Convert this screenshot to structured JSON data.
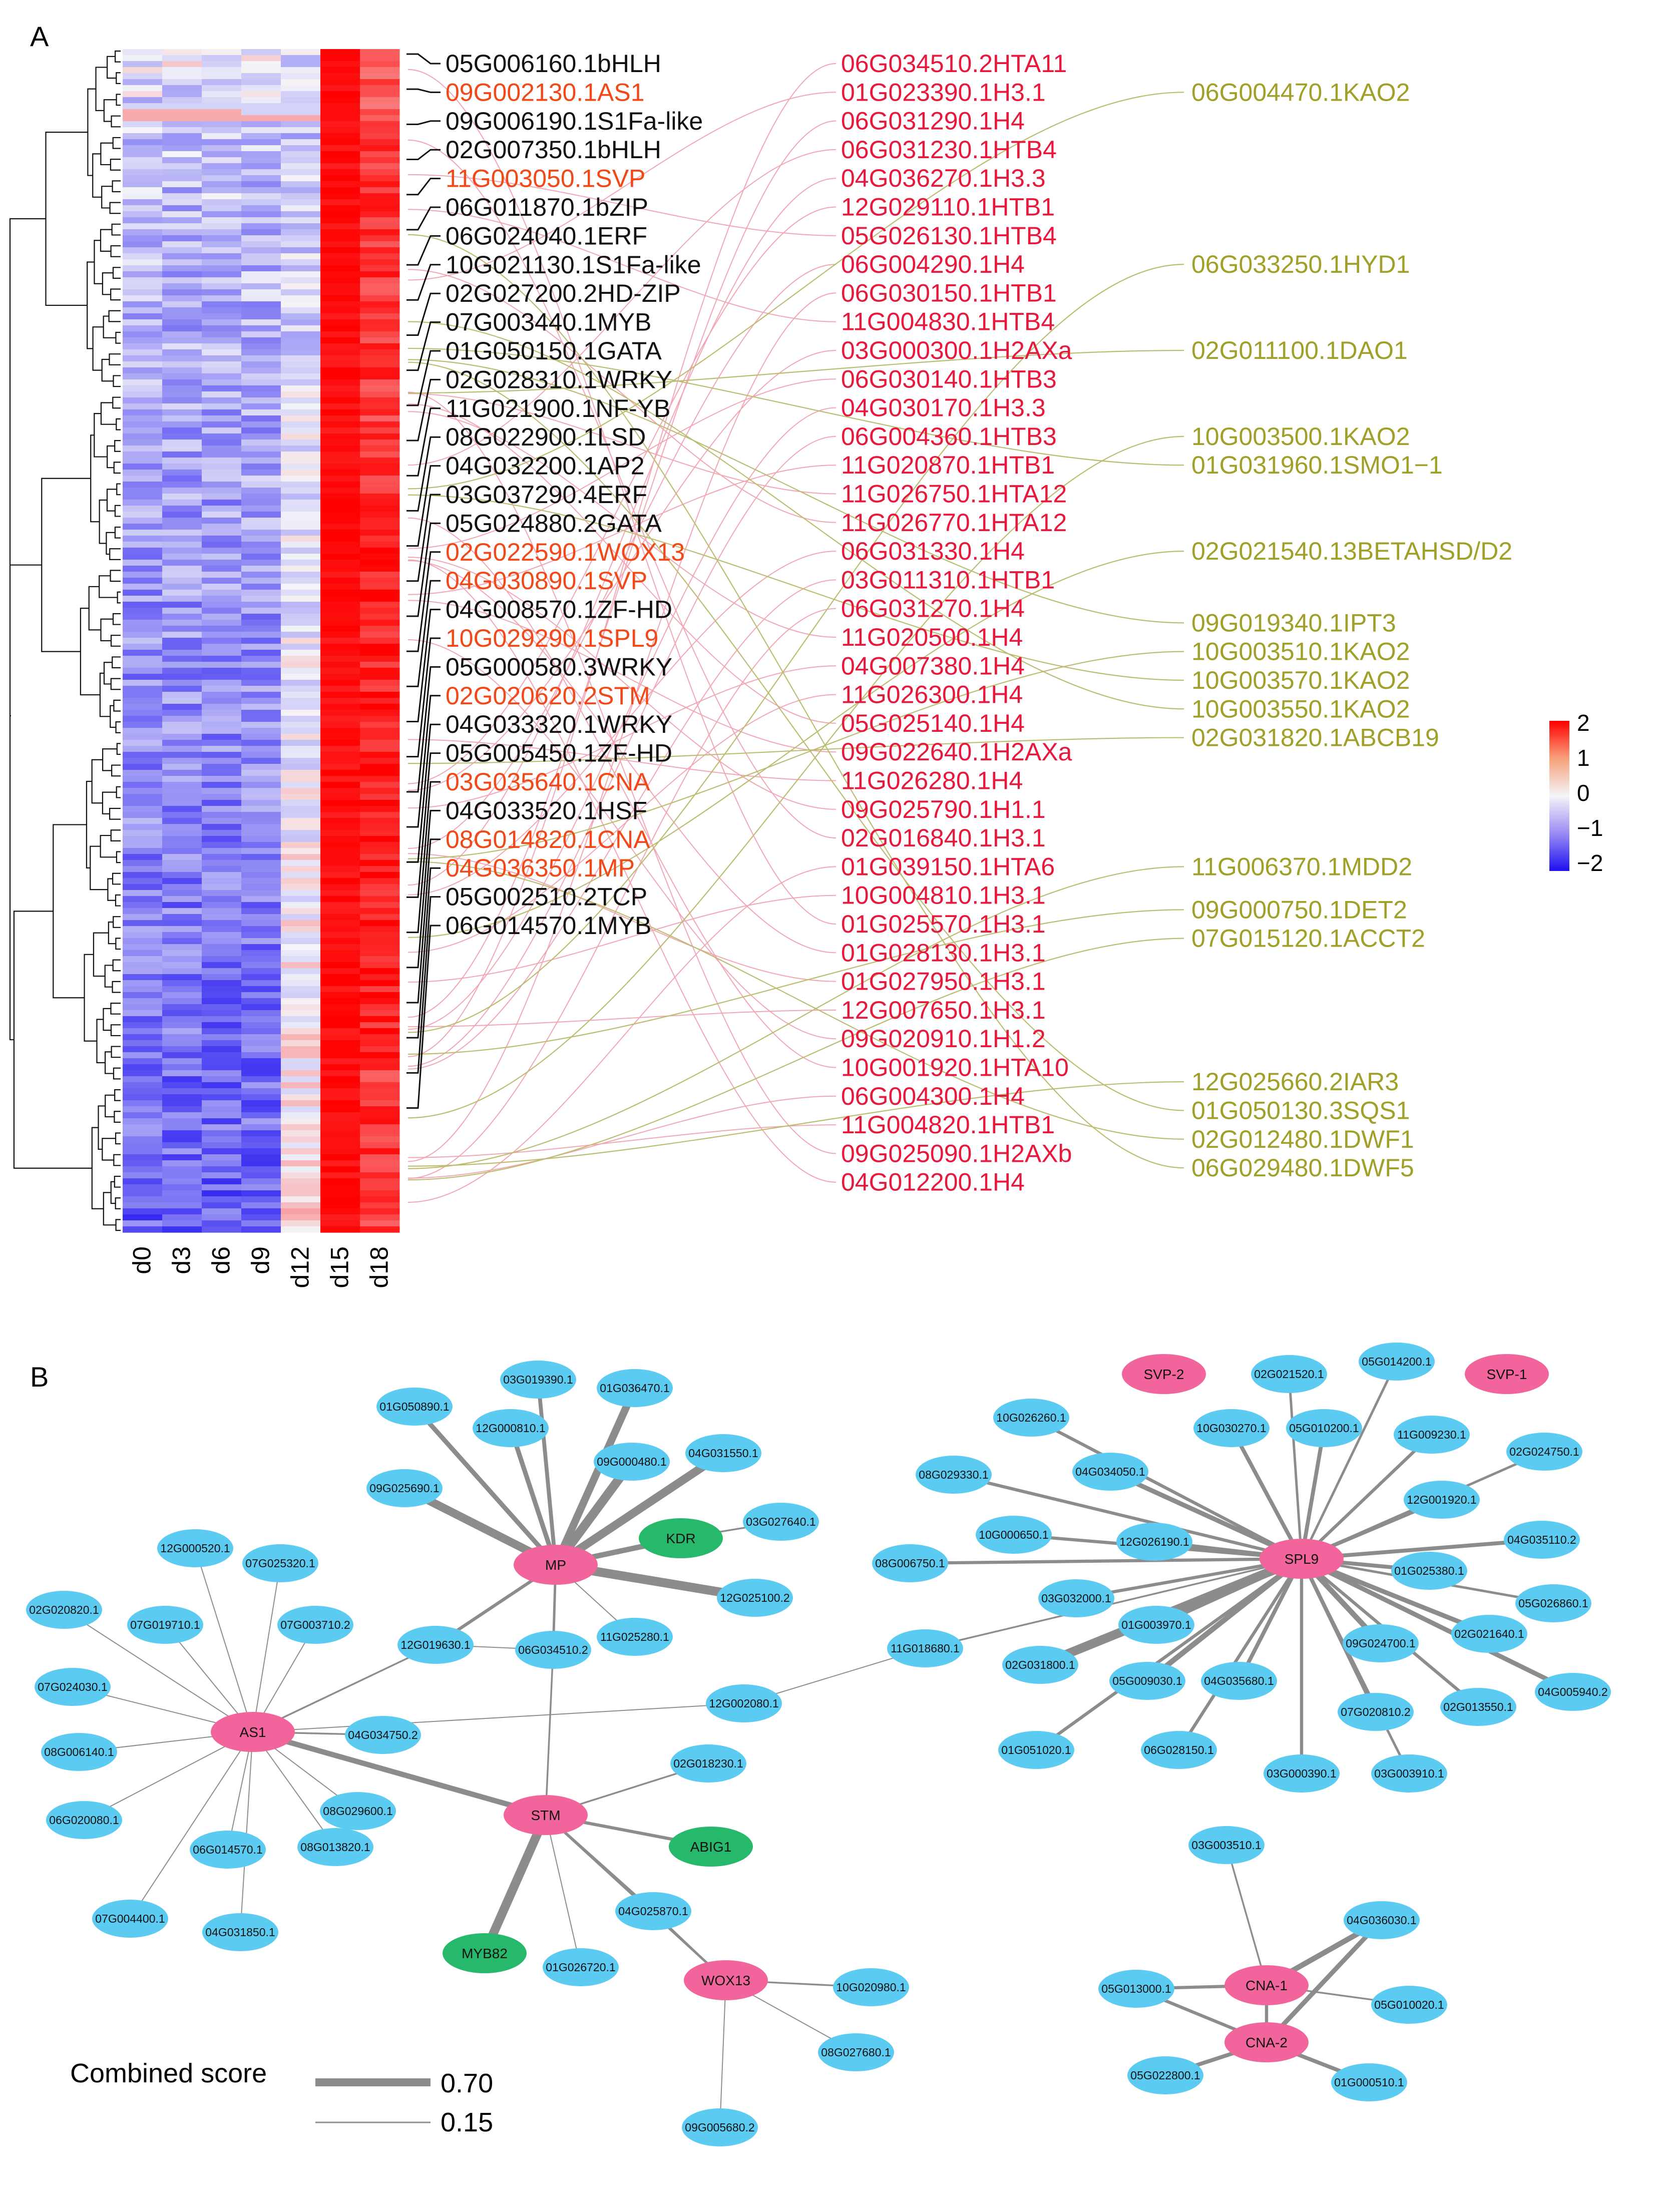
{
  "panelA": {
    "label": "A",
    "samples": [
      "d0",
      "d3",
      "d6",
      "d9",
      "d12",
      "d15",
      "d18"
    ],
    "legend": {
      "ticks": [
        "2",
        "1",
        "0",
        "−1",
        "−2"
      ],
      "colors": {
        "high": "#ff0000",
        "mid": "#f4f4f8",
        "low": "#1d10f0"
      }
    },
    "tf": [
      {
        "t": "05G006160.1bHLH",
        "c": "black"
      },
      {
        "t": "09G002130.1AS1",
        "c": "orange"
      },
      {
        "t": "09G006190.1S1Fa-like",
        "c": "black"
      },
      {
        "t": "02G007350.1bHLH",
        "c": "black"
      },
      {
        "t": "11G003050.1SVP",
        "c": "orange"
      },
      {
        "t": "06G011870.1bZIP",
        "c": "black"
      },
      {
        "t": "06G024040.1ERF",
        "c": "black"
      },
      {
        "t": "10G021130.1S1Fa-like",
        "c": "black"
      },
      {
        "t": "02G027200.2HD-ZIP",
        "c": "black"
      },
      {
        "t": "07G003440.1MYB",
        "c": "black"
      },
      {
        "t": "01G050150.1GATA",
        "c": "black"
      },
      {
        "t": "02G028310.1WRKY",
        "c": "black"
      },
      {
        "t": "11G021900.1NF-YB",
        "c": "black"
      },
      {
        "t": "08G022900.1LSD",
        "c": "black"
      },
      {
        "t": "04G032200.1AP2",
        "c": "black"
      },
      {
        "t": "03G037290.4ERF",
        "c": "black"
      },
      {
        "t": "05G024880.2GATA",
        "c": "black"
      },
      {
        "t": "02G022590.1WOX13",
        "c": "orange"
      },
      {
        "t": "04G030890.1SVP",
        "c": "orange"
      },
      {
        "t": "04G008570.1ZF-HD",
        "c": "black"
      },
      {
        "t": "10G029290.1SPL9",
        "c": "orange"
      },
      {
        "t": "05G000580.3WRKY",
        "c": "black"
      },
      {
        "t": "02G020620.2STM",
        "c": "orange"
      },
      {
        "t": "04G033320.1WRKY",
        "c": "black"
      },
      {
        "t": "05G005450.1ZF-HD",
        "c": "black"
      },
      {
        "t": "03G035640.1CNA",
        "c": "orange"
      },
      {
        "t": "04G033520.1HSF",
        "c": "black"
      },
      {
        "t": "08G014820.1CNA",
        "c": "orange"
      },
      {
        "t": "04G036350.1MP",
        "c": "orange"
      },
      {
        "t": "05G002510.2TCP",
        "c": "black"
      },
      {
        "t": "06G014570.1MYB",
        "c": "black"
      }
    ],
    "histones": [
      "06G034510.2HTA11",
      "01G023390.1H3.1",
      "06G031290.1H4",
      "06G031230.1HTB4",
      "04G036270.1H3.3",
      "12G029110.1HTB1",
      "05G026130.1HTB4",
      "06G004290.1H4",
      "06G030150.1HTB1",
      "11G004830.1HTB4",
      "03G000300.1H2AXa",
      "06G030140.1HTB3",
      "04G030170.1H3.3",
      "06G004360.1HTB3",
      "11G020870.1HTB1",
      "11G026750.1HTA12",
      "11G026770.1HTA12",
      "06G031330.1H4",
      "03G011310.1HTB1",
      "06G031270.1H4",
      "11G020500.1H4",
      "04G007380.1H4",
      "11G026300.1H4",
      "05G025140.1H4",
      "09G022640.1H2AXa",
      "11G026280.1H4",
      "09G025790.1H1.1",
      "02G016840.1H3.1",
      "01G039150.1HTA6",
      "10G004810.1H3.1",
      "01G025570.1H3.1",
      "01G028130.1H3.1",
      "01G027950.1H3.1",
      "12G007650.1H3.1",
      "09G020910.1H1.2",
      "10G001920.1HTA10",
      "06G004300.1H4",
      "11G004820.1HTB1",
      "09G025090.1H2AXb",
      "04G012200.1H4"
    ],
    "hormones": [
      {
        "t": "06G004470.1KAO2",
        "row": 1
      },
      {
        "t": "06G033250.1HYD1",
        "row": 7
      },
      {
        "t": "02G011100.1DAO1",
        "row": 10
      },
      {
        "t": "10G003500.1KAO2",
        "row": 13
      },
      {
        "t": "01G031960.1SMO1−1",
        "row": 14
      },
      {
        "t": "02G021540.13BETAHSD/D2",
        "row": 17
      },
      {
        "t": "09G019340.1IPT3",
        "row": 19.5
      },
      {
        "t": "10G003510.1KAO2",
        "row": 20.5
      },
      {
        "t": "10G003570.1KAO2",
        "row": 21.5
      },
      {
        "t": "10G003550.1KAO2",
        "row": 22.5
      },
      {
        "t": "02G031820.1ABCB19",
        "row": 23.5
      },
      {
        "t": "11G006370.1MDD2",
        "row": 28
      },
      {
        "t": "09G000750.1DET2",
        "row": 29.5
      },
      {
        "t": "07G015120.1ACCT2",
        "row": 30.5
      },
      {
        "t": "12G025660.2IAR3",
        "row": 35.5
      },
      {
        "t": "01G050130.3SQS1",
        "row": 36.5
      },
      {
        "t": "02G012480.1DWF1",
        "row": 37.5
      },
      {
        "t": "06G029480.1DWF5",
        "row": 38.5
      }
    ]
  },
  "panelB": {
    "label": "B",
    "legend": {
      "title": "Combined score",
      "max": "0.70",
      "min": "0.15"
    },
    "nodes": [
      {
        "id": "MP",
        "type": "tf"
      },
      {
        "id": "AS1",
        "type": "tf"
      },
      {
        "id": "STM",
        "type": "tf"
      },
      {
        "id": "WOX13",
        "type": "tf"
      },
      {
        "id": "SPL9",
        "type": "tf"
      },
      {
        "id": "SVP-2",
        "type": "tf"
      },
      {
        "id": "SVP-1",
        "type": "tf"
      },
      {
        "id": "CNA-1",
        "type": "tf"
      },
      {
        "id": "CNA-2",
        "type": "tf"
      },
      {
        "id": "KDR",
        "type": "hormone"
      },
      {
        "id": "ABIG1",
        "type": "hormone"
      },
      {
        "id": "MYB82",
        "type": "hormone"
      },
      {
        "id": "03G019390.1",
        "type": "gene"
      },
      {
        "id": "01G036470.1",
        "type": "gene"
      },
      {
        "id": "01G050890.1",
        "type": "gene"
      },
      {
        "id": "12G000810.1",
        "type": "gene"
      },
      {
        "id": "04G031550.1",
        "type": "gene"
      },
      {
        "id": "09G000480.1",
        "type": "gene"
      },
      {
        "id": "09G025690.1",
        "type": "gene"
      },
      {
        "id": "03G027640.1",
        "type": "gene"
      },
      {
        "id": "12G025100.2",
        "type": "gene"
      },
      {
        "id": "11G025280.1",
        "type": "gene"
      },
      {
        "id": "12G019630.1",
        "type": "gene"
      },
      {
        "id": "06G034510.2",
        "type": "gene"
      },
      {
        "id": "12G000520.1",
        "type": "gene"
      },
      {
        "id": "07G025320.1",
        "type": "gene"
      },
      {
        "id": "02G020820.1",
        "type": "gene"
      },
      {
        "id": "07G019710.1",
        "type": "gene"
      },
      {
        "id": "07G003710.2",
        "type": "gene"
      },
      {
        "id": "07G024030.1",
        "type": "gene"
      },
      {
        "id": "04G034750.2",
        "type": "gene"
      },
      {
        "id": "08G006140.1",
        "type": "gene"
      },
      {
        "id": "08G029600.1",
        "type": "gene"
      },
      {
        "id": "06G020080.1",
        "type": "gene"
      },
      {
        "id": "06G014570.1",
        "type": "gene"
      },
      {
        "id": "08G013820.1",
        "type": "gene"
      },
      {
        "id": "07G004400.1",
        "type": "gene"
      },
      {
        "id": "04G031850.1",
        "type": "gene"
      },
      {
        "id": "12G002080.1",
        "type": "gene"
      },
      {
        "id": "02G018230.1",
        "type": "gene"
      },
      {
        "id": "04G025870.1",
        "type": "gene"
      },
      {
        "id": "01G026720.1",
        "type": "gene"
      },
      {
        "id": "10G020980.1",
        "type": "gene"
      },
      {
        "id": "08G027680.1",
        "type": "gene"
      },
      {
        "id": "09G005680.2",
        "type": "gene"
      },
      {
        "id": "02G021520.1",
        "type": "gene"
      },
      {
        "id": "05G014200.1",
        "type": "gene"
      },
      {
        "id": "10G026260.1",
        "type": "gene"
      },
      {
        "id": "10G030270.1",
        "type": "gene"
      },
      {
        "id": "05G010200.1",
        "type": "gene"
      },
      {
        "id": "11G009230.1",
        "type": "gene"
      },
      {
        "id": "02G024750.1",
        "type": "gene"
      },
      {
        "id": "08G029330.1",
        "type": "gene"
      },
      {
        "id": "04G034050.1",
        "type": "gene"
      },
      {
        "id": "12G001920.1",
        "type": "gene"
      },
      {
        "id": "10G000650.1",
        "type": "gene"
      },
      {
        "id": "12G026190.1",
        "type": "gene"
      },
      {
        "id": "04G035110.2",
        "type": "gene"
      },
      {
        "id": "08G006750.1",
        "type": "gene"
      },
      {
        "id": "03G032000.1",
        "type": "gene"
      },
      {
        "id": "01G025380.1",
        "type": "gene"
      },
      {
        "id": "05G026860.1",
        "type": "gene"
      },
      {
        "id": "11G018680.1",
        "type": "gene"
      },
      {
        "id": "01G003970.1",
        "type": "gene"
      },
      {
        "id": "09G024700.1",
        "type": "gene"
      },
      {
        "id": "02G021640.1",
        "type": "gene"
      },
      {
        "id": "02G031800.1",
        "type": "gene"
      },
      {
        "id": "05G009030.1",
        "type": "gene"
      },
      {
        "id": "04G035680.1",
        "type": "gene"
      },
      {
        "id": "07G020810.2",
        "type": "gene"
      },
      {
        "id": "02G013550.1",
        "type": "gene"
      },
      {
        "id": "04G005940.2",
        "type": "gene"
      },
      {
        "id": "01G051020.1",
        "type": "gene"
      },
      {
        "id": "06G028150.1",
        "type": "gene"
      },
      {
        "id": "03G000390.1",
        "type": "gene"
      },
      {
        "id": "03G003910.1",
        "type": "gene"
      },
      {
        "id": "03G003510.1",
        "type": "gene"
      },
      {
        "id": "04G036030.1",
        "type": "gene"
      },
      {
        "id": "05G013000.1",
        "type": "gene"
      },
      {
        "id": "05G010020.1",
        "type": "gene"
      },
      {
        "id": "05G022800.1",
        "type": "gene"
      },
      {
        "id": "01G000510.1",
        "type": "gene"
      }
    ],
    "edges": [
      [
        "MP",
        "03G019390.1",
        0.35
      ],
      [
        "MP",
        "01G036470.1",
        0.6
      ],
      [
        "MP",
        "01G050890.1",
        0.4
      ],
      [
        "MP",
        "12G000810.1",
        0.4
      ],
      [
        "MP",
        "04G031550.1",
        0.65
      ],
      [
        "MP",
        "09G000480.1",
        0.7
      ],
      [
        "MP",
        "09G025690.1",
        0.65
      ],
      [
        "MP",
        "KDR",
        0.45
      ],
      [
        "MP",
        "12G025100.2",
        0.7
      ],
      [
        "MP",
        "11G025280.1",
        0.15
      ],
      [
        "MP",
        "12G019630.1",
        0.3
      ],
      [
        "MP",
        "06G034510.2",
        0.25
      ],
      [
        "KDR",
        "03G027640.1",
        0.2
      ],
      [
        "AS1",
        "12G000520.1",
        0.15
      ],
      [
        "AS1",
        "07G025320.1",
        0.15
      ],
      [
        "AS1",
        "02G020820.1",
        0.15
      ],
      [
        "AS1",
        "07G019710.1",
        0.15
      ],
      [
        "AS1",
        "07G003710.2",
        0.15
      ],
      [
        "AS1",
        "12G019630.1",
        0.2
      ],
      [
        "AS1",
        "07G024030.1",
        0.15
      ],
      [
        "AS1",
        "08G006140.1",
        0.15
      ],
      [
        "AS1",
        "04G034750.2",
        0.2
      ],
      [
        "AS1",
        "06G020080.1",
        0.15
      ],
      [
        "AS1",
        "06G014570.1",
        0.15
      ],
      [
        "AS1",
        "08G029600.1",
        0.15
      ],
      [
        "AS1",
        "08G013820.1",
        0.15
      ],
      [
        "AS1",
        "07G004400.1",
        0.15
      ],
      [
        "AS1",
        "04G031850.1",
        0.15
      ],
      [
        "AS1",
        "STM",
        0.45
      ],
      [
        "AS1",
        "12G002080.1",
        0.15
      ],
      [
        "STM",
        "06G034510.2",
        0.2
      ],
      [
        "STM",
        "02G018230.1",
        0.2
      ],
      [
        "STM",
        "ABIG1",
        0.3
      ],
      [
        "STM",
        "MYB82",
        0.7
      ],
      [
        "STM",
        "01G026720.1",
        0.15
      ],
      [
        "STM",
        "04G025870.1",
        0.25
      ],
      [
        "STM",
        "WOX13",
        0.25
      ],
      [
        "12G019630.1",
        "06G034510.2",
        0.15
      ],
      [
        "WOX13",
        "10G020980.1",
        0.2
      ],
      [
        "WOX13",
        "08G027680.1",
        0.15
      ],
      [
        "WOX13",
        "09G005680.2",
        0.15
      ],
      [
        "WOX13",
        "04G025870.1",
        0.15
      ],
      [
        "12G002080.1",
        "11G018680.1",
        0.15
      ],
      [
        "11G018680.1",
        "SPL9",
        0.2
      ],
      [
        "SPL9",
        "02G021520.1",
        0.25
      ],
      [
        "SPL9",
        "05G014200.1",
        0.25
      ],
      [
        "SPL9",
        "10G026260.1",
        0.3
      ],
      [
        "SPL9",
        "10G030270.1",
        0.35
      ],
      [
        "SPL9",
        "05G010200.1",
        0.35
      ],
      [
        "SPL9",
        "11G009230.1",
        0.3
      ],
      [
        "SPL9",
        "02G024750.1",
        0.25
      ],
      [
        "SPL9",
        "08G029330.1",
        0.3
      ],
      [
        "SPL9",
        "04G034050.1",
        0.4
      ],
      [
        "SPL9",
        "12G001920.1",
        0.35
      ],
      [
        "SPL9",
        "10G000650.1",
        0.3
      ],
      [
        "SPL9",
        "12G026190.1",
        0.35
      ],
      [
        "SPL9",
        "04G035110.2",
        0.35
      ],
      [
        "SPL9",
        "08G006750.1",
        0.3
      ],
      [
        "SPL9",
        "03G032000.1",
        0.3
      ],
      [
        "SPL9",
        "01G025380.1",
        0.35
      ],
      [
        "SPL9",
        "05G026860.1",
        0.25
      ],
      [
        "SPL9",
        "01G003970.1",
        0.45
      ],
      [
        "SPL9",
        "09G024700.1",
        0.45
      ],
      [
        "SPL9",
        "02G021640.1",
        0.4
      ],
      [
        "SPL9",
        "02G031800.1",
        0.7
      ],
      [
        "SPL9",
        "05G009030.1",
        0.45
      ],
      [
        "SPL9",
        "04G035680.1",
        0.35
      ],
      [
        "SPL9",
        "07G020810.2",
        0.35
      ],
      [
        "SPL9",
        "02G013550.1",
        0.3
      ],
      [
        "SPL9",
        "04G005940.2",
        0.4
      ],
      [
        "SPL9",
        "01G051020.1",
        0.3
      ],
      [
        "SPL9",
        "06G028150.1",
        0.3
      ],
      [
        "SPL9",
        "03G000390.1",
        0.3
      ],
      [
        "SPL9",
        "03G003910.1",
        0.25
      ],
      [
        "CNA-1",
        "03G003510.1",
        0.2
      ],
      [
        "CNA-1",
        "04G036030.1",
        0.45
      ],
      [
        "CNA-1",
        "05G013000.1",
        0.3
      ],
      [
        "CNA-1",
        "05G010020.1",
        0.2
      ],
      [
        "CNA-1",
        "CNA-2",
        0.3
      ],
      [
        "CNA-2",
        "04G036030.1",
        0.4
      ],
      [
        "CNA-2",
        "05G013000.1",
        0.3
      ],
      [
        "CNA-2",
        "05G022800.1",
        0.35
      ],
      [
        "CNA-2",
        "01G000510.1",
        0.35
      ]
    ],
    "colors": {
      "gene": "#5ccbf2",
      "tf": "#f2649c",
      "hormone": "#26b86b",
      "edge": "#8c8c8c"
    }
  },
  "colors": {
    "tfBlack": "#111111",
    "tfOrange": "#f24818",
    "histone": "#e8173c",
    "hormone": "#a0a028",
    "histLine": "#f2a6b4",
    "hormLine": "#bcbc70"
  }
}
